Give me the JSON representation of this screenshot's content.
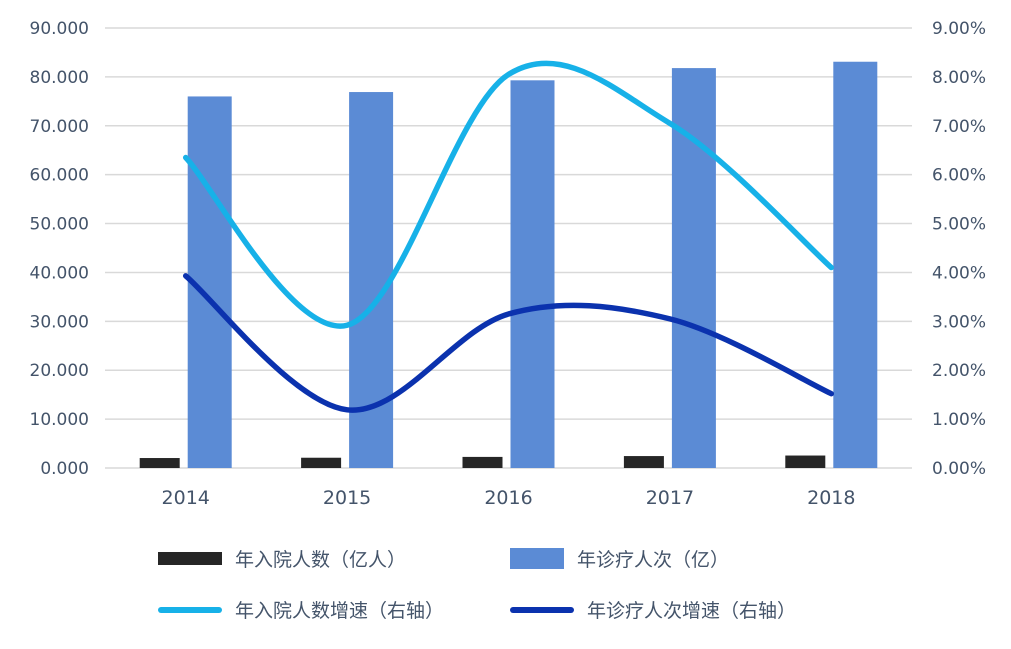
{
  "colors": {
    "background": "#ffffff",
    "grid": "#D9D9D9",
    "text": "#44546A",
    "bar_admissions": "#262626",
    "bar_visits": "#5B8BD5",
    "line_admissions_growth": "#17B1E8",
    "line_visits_growth": "#0B32AE"
  },
  "chart_data": {
    "type": "bar",
    "subtype": "combo-bar-line-dual-axis",
    "title": "",
    "xlabel": "",
    "ylabel": "",
    "grid": true,
    "legend_position": "bottom",
    "categories": [
      "2014",
      "2015",
      "2016",
      "2017",
      "2018"
    ],
    "series": [
      {
        "name": "年入院人数（亿人）",
        "type": "bar",
        "axis": "left",
        "color": "#262626",
        "values": [
          2.04,
          2.1,
          2.27,
          2.44,
          2.55
        ]
      },
      {
        "name": "年诊疗人次（亿）",
        "type": "bar",
        "axis": "left",
        "color": "#5B8BD5",
        "values": [
          76.0,
          76.9,
          79.3,
          81.8,
          83.1
        ]
      },
      {
        "name": "年入院人数增速（右轴）",
        "type": "line",
        "axis": "right",
        "color": "#17B1E8",
        "values": [
          6.35,
          2.92,
          8.05,
          7.05,
          4.1
        ]
      },
      {
        "name": "年诊疗人次增速（右轴）",
        "type": "line",
        "axis": "right",
        "color": "#0B32AE",
        "values": [
          3.93,
          1.19,
          3.15,
          3.05,
          1.52
        ]
      }
    ],
    "left_axis": {
      "min": 0,
      "max": 90,
      "step": 10,
      "tick_labels": [
        "0.000",
        "10.000",
        "20.000",
        "30.000",
        "40.000",
        "50.000",
        "60.000",
        "70.000",
        "80.000",
        "90.000"
      ]
    },
    "right_axis": {
      "min": 0,
      "max": 9,
      "step": 1,
      "tick_labels": [
        "0.00%",
        "1.00%",
        "2.00%",
        "3.00%",
        "4.00%",
        "5.00%",
        "6.00%",
        "7.00%",
        "8.00%",
        "9.00%"
      ]
    }
  }
}
